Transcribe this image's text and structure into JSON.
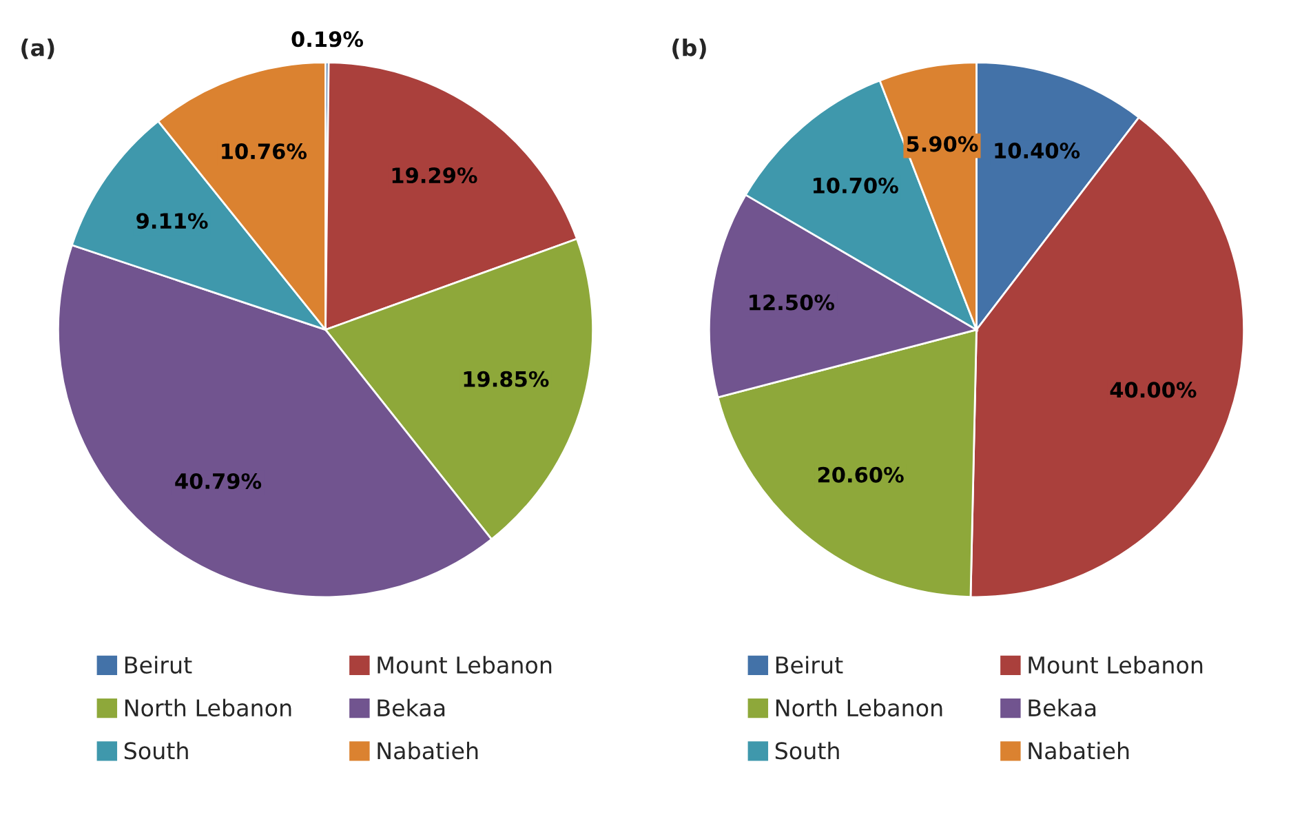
{
  "chart_data": [
    {
      "type": "pie",
      "title": "(a)",
      "categories": [
        "Beirut",
        "Mount Lebanon",
        "North Lebanon",
        "Bekaa",
        "South",
        "Nabatieh"
      ],
      "values": [
        0.19,
        19.29,
        19.85,
        40.79,
        9.11,
        10.76
      ],
      "value_labels": [
        "0.19%",
        "19.29%",
        "19.85%",
        "40.79%",
        "9.11%",
        "10.76%"
      ],
      "colors": [
        "#4372a8",
        "#aa403c",
        "#8ea83a",
        "#71548f",
        "#3f98ac",
        "#db8230"
      ],
      "legend": "bottom"
    },
    {
      "type": "pie",
      "title": "(b)",
      "categories": [
        "Beirut",
        "Mount Lebanon",
        "North Lebanon",
        "Bekaa",
        "South",
        "Nabatieh"
      ],
      "values": [
        10.4,
        40.0,
        20.6,
        12.5,
        10.7,
        5.9
      ],
      "value_labels": [
        "10.40%",
        "40.00%",
        "20.60%",
        "12.50%",
        "10.70%",
        "5.90%"
      ],
      "colors": [
        "#4372a8",
        "#aa403c",
        "#8ea83a",
        "#71548f",
        "#3f98ac",
        "#db8230"
      ],
      "legend": "bottom"
    }
  ]
}
